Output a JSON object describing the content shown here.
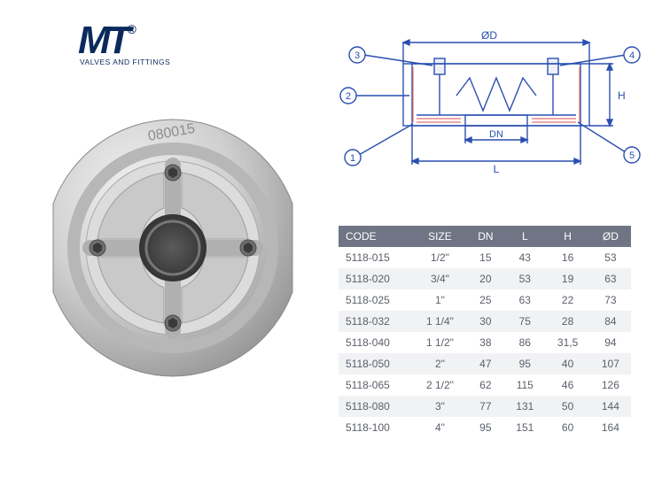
{
  "logo": {
    "mark": "MT",
    "reg": "®",
    "sub": "VALVES AND FITTINGS"
  },
  "diagram": {
    "labels": {
      "OD": "ØD",
      "H": "H",
      "DN": "DN",
      "L": "L"
    },
    "callouts": {
      "1": "1",
      "2": "2",
      "3": "3",
      "4": "4",
      "5": "5"
    },
    "colors": {
      "stroke": "#2a4fb0",
      "hatch": "#e7706f",
      "bg": "#ffffff"
    }
  },
  "table": {
    "headers": {
      "code": "CODE",
      "size": "SIZE",
      "dn": "DN",
      "l": "L",
      "h": "H",
      "od": "ØD"
    },
    "rows": [
      {
        "code": "5118-015",
        "size": "1/2\"",
        "dn": "15",
        "l": "43",
        "h": "16",
        "od": "53"
      },
      {
        "code": "5118-020",
        "size": "3/4\"",
        "dn": "20",
        "l": "53",
        "h": "19",
        "od": "63"
      },
      {
        "code": "5118-025",
        "size": "1\"",
        "dn": "25",
        "l": "63",
        "h": "22",
        "od": "73"
      },
      {
        "code": "5118-032",
        "size": "1 1/4\"",
        "dn": "30",
        "l": "75",
        "h": "28",
        "od": "84"
      },
      {
        "code": "5118-040",
        "size": "1 1/2\"",
        "dn": "38",
        "l": "86",
        "h": "31,5",
        "od": "94"
      },
      {
        "code": "5118-050",
        "size": "2\"",
        "dn": "47",
        "l": "95",
        "h": "40",
        "od": "107"
      },
      {
        "code": "5118-065",
        "size": "2 1/2\"",
        "dn": "62",
        "l": "115",
        "h": "46",
        "od": "126"
      },
      {
        "code": "5118-080",
        "size": "3\"",
        "dn": "77",
        "l": "131",
        "h": "50",
        "od": "144"
      },
      {
        "code": "5118-100",
        "size": "4\"",
        "dn": "95",
        "l": "151",
        "h": "60",
        "od": "164"
      }
    ],
    "colors": {
      "header_bg": "#6f7584",
      "header_fg": "#ffffff",
      "row_even": "#f1f2f4",
      "row_odd": "#ffffff",
      "cell_fg": "#5a5f6a"
    }
  },
  "product": {
    "marking": "080015"
  }
}
